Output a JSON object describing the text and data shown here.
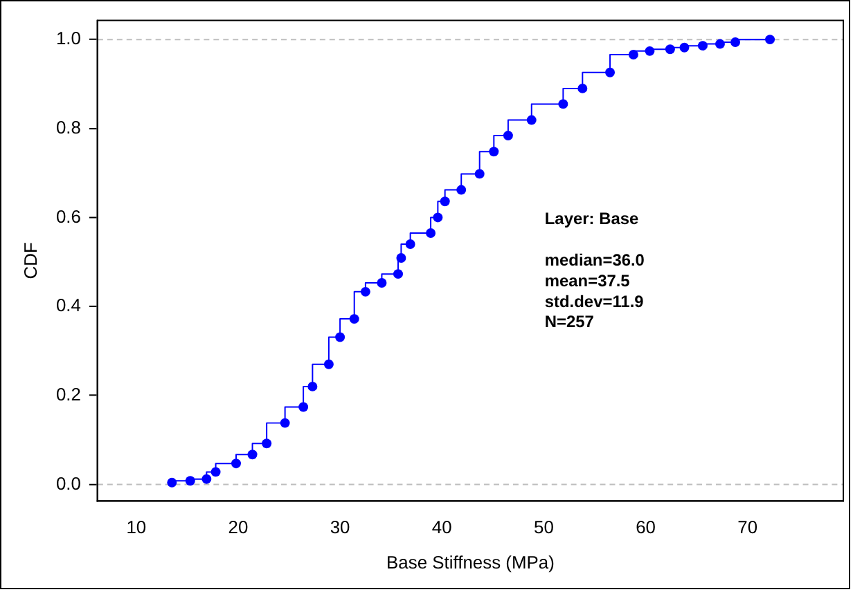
{
  "chart_data": {
    "type": "step",
    "xlabel": "Base Stiffness (MPa)",
    "ylabel": "CDF",
    "xlim": [
      6.2,
      79.4
    ],
    "xticks": [
      10,
      20,
      30,
      40,
      50,
      60,
      70
    ],
    "ylim": [
      -0.037,
      1.043
    ],
    "yticks": [
      {
        "value": 0,
        "label": "0.0"
      },
      {
        "value": 0.2,
        "label": "0.2"
      },
      {
        "value": 0.4,
        "label": "0.4"
      },
      {
        "value": 0.6,
        "label": "0.6"
      },
      {
        "value": 0.8,
        "label": "0.8"
      },
      {
        "value": 1,
        "label": "1.0"
      }
    ],
    "grid": false,
    "legend": false,
    "marker": "circle",
    "line_style": "solid",
    "ref_lines": [
      {
        "axis": "y",
        "value": 0,
        "color": "#bebebe",
        "line_style": "dashed"
      },
      {
        "axis": "y",
        "value": 1,
        "color": "#bebebe",
        "line_style": "dashed"
      }
    ],
    "annotations": [
      "Layer: Base",
      "median=36.0",
      "mean=37.5",
      "std.dev=11.9",
      "N=257"
    ],
    "series": [
      {
        "color": "#0000ff",
        "x": [
          13.5,
          15.3,
          16.9,
          17.8,
          19.8,
          21.4,
          22.8,
          24.6,
          26.4,
          27.3,
          28.9,
          30.0,
          31.4,
          32.5,
          34.1,
          35.7,
          36.0,
          36.9,
          38.9,
          39.6,
          40.3,
          41.9,
          43.7,
          45.1,
          46.5,
          48.8,
          51.9,
          53.8,
          56.5,
          58.8,
          60.4,
          62.4,
          63.8,
          65.6,
          67.3,
          68.8,
          72.2
        ],
        "values": [
          0.004,
          0.008,
          0.012,
          0.028,
          0.047,
          0.067,
          0.092,
          0.138,
          0.174,
          0.22,
          0.27,
          0.331,
          0.372,
          0.433,
          0.453,
          0.473,
          0.509,
          0.54,
          0.565,
          0.6,
          0.636,
          0.662,
          0.698,
          0.748,
          0.784,
          0.819,
          0.855,
          0.89,
          0.926,
          0.966,
          0.974,
          0.978,
          0.982,
          0.986,
          0.99,
          0.994,
          1.0
        ]
      }
    ]
  }
}
